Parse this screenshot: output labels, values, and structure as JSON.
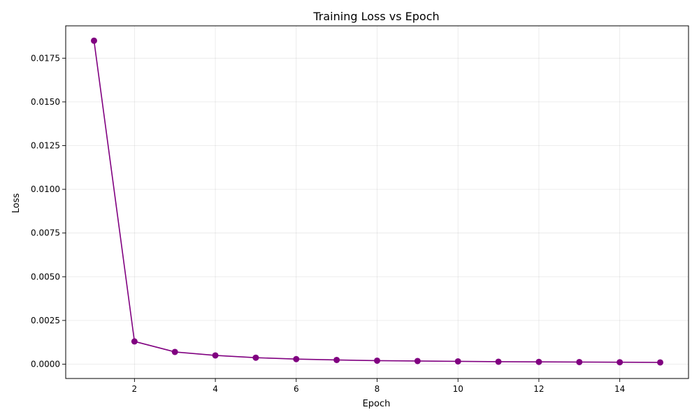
{
  "chart_data": {
    "type": "line",
    "title": "Training Loss vs Epoch",
    "xlabel": "Epoch",
    "ylabel": "Loss",
    "xlim": [
      0.3,
      15.7
    ],
    "ylim": [
      -0.00082,
      0.01935
    ],
    "x_ticks": [
      2,
      4,
      6,
      8,
      10,
      12,
      14
    ],
    "x_tick_labels": [
      "2",
      "4",
      "6",
      "8",
      "10",
      "12",
      "14"
    ],
    "y_ticks": [
      0.0,
      0.0025,
      0.005,
      0.0075,
      0.01,
      0.0125,
      0.015,
      0.0175
    ],
    "y_tick_labels": [
      "0.0000",
      "0.0025",
      "0.0050",
      "0.0075",
      "0.0100",
      "0.0125",
      "0.0150",
      "0.0175"
    ],
    "grid": true,
    "legend": "none",
    "x": [
      1,
      2,
      3,
      4,
      5,
      6,
      7,
      8,
      9,
      10,
      11,
      12,
      13,
      14,
      15
    ],
    "series": [
      {
        "values": [
          0.0185,
          0.0013,
          0.0007,
          0.0005,
          0.00037,
          0.00029,
          0.00024,
          0.0002,
          0.00018,
          0.00016,
          0.00014,
          0.00013,
          0.00012,
          0.00011,
          0.0001
        ],
        "color": "#800080",
        "marker": "circle"
      }
    ]
  }
}
